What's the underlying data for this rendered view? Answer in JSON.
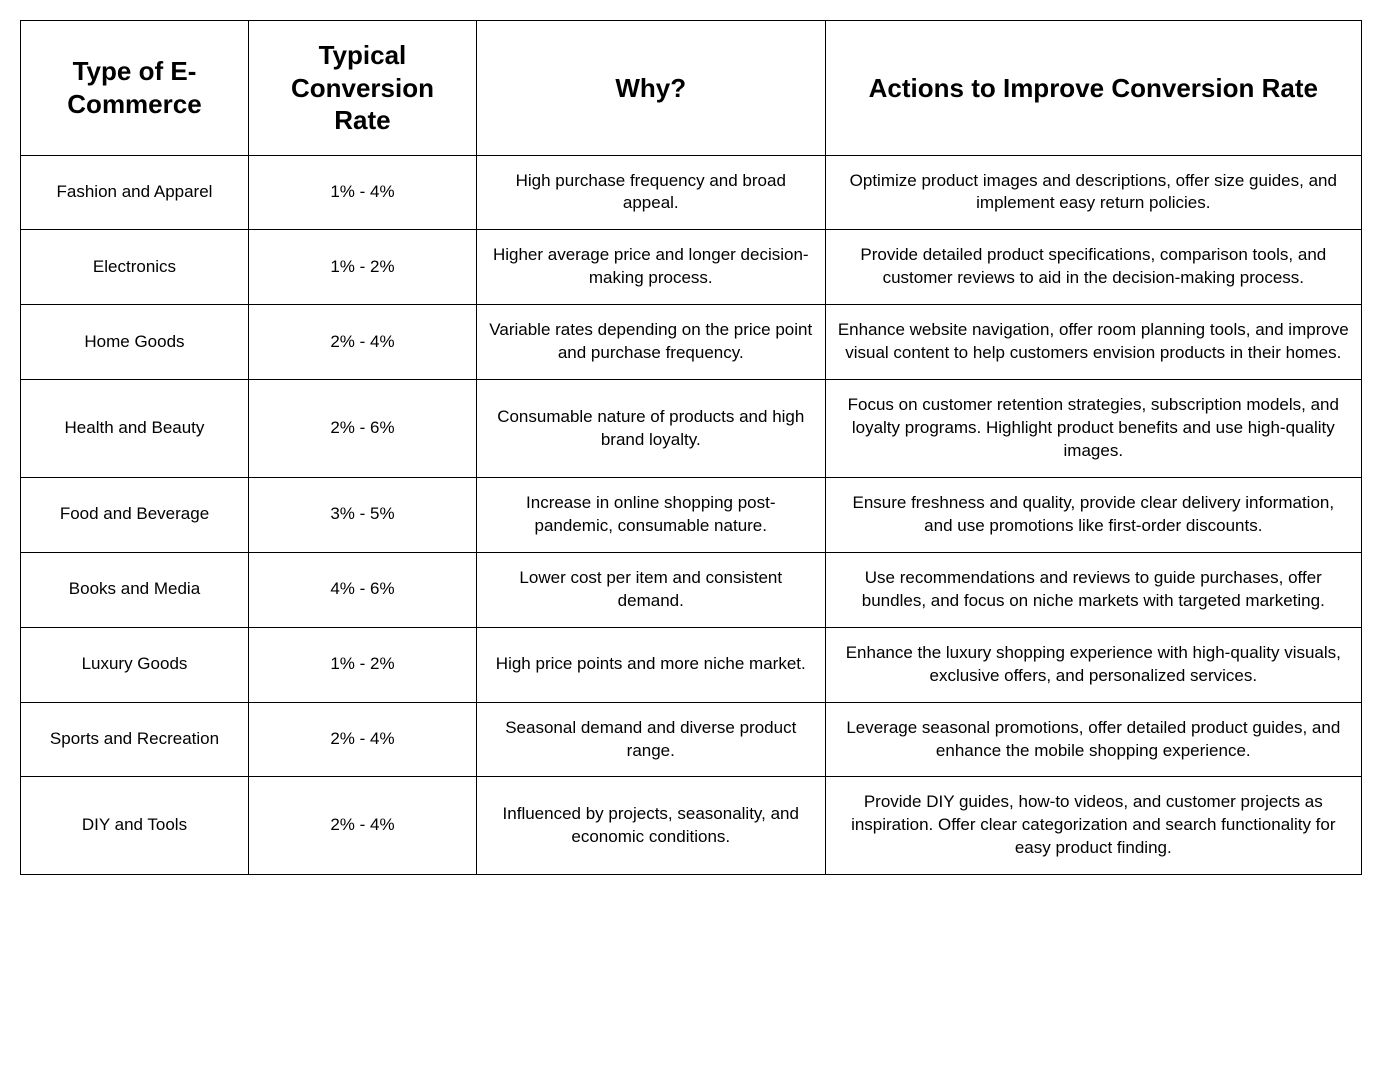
{
  "table": {
    "columns": [
      "Type of E-Commerce",
      "Typical Conversion Rate",
      "Why?",
      "Actions to Improve Conversion Rate"
    ],
    "rows": [
      {
        "type": "Fashion and Apparel",
        "rate": "1% - 4%",
        "why": "High purchase frequency and broad appeal.",
        "actions": "Optimize product images and descriptions, offer size guides, and implement easy return policies."
      },
      {
        "type": "Electronics",
        "rate": "1% - 2%",
        "why": "Higher average price and longer decision-making process.",
        "actions": "Provide detailed product specifications, comparison tools, and customer reviews to aid in the decision-making process."
      },
      {
        "type": "Home Goods",
        "rate": "2% - 4%",
        "why": "Variable rates depending on the price point and purchase frequency.",
        "actions": "Enhance website navigation, offer room planning tools, and improve visual content to help customers envision products in their homes."
      },
      {
        "type": "Health and Beauty",
        "rate": "2% - 6%",
        "why": "Consumable nature of products and high brand loyalty.",
        "actions": "Focus on customer retention strategies, subscription models, and loyalty programs. Highlight product benefits and use high-quality images."
      },
      {
        "type": "Food and Beverage",
        "rate": "3% - 5%",
        "why": "Increase in online shopping post-pandemic, consumable nature.",
        "actions": "Ensure freshness and quality, provide clear delivery information, and use promotions like first-order discounts."
      },
      {
        "type": "Books and Media",
        "rate": "4% - 6%",
        "why": "Lower cost per item and consistent demand.",
        "actions": "Use recommendations and reviews to guide purchases, offer bundles, and focus on niche markets with targeted marketing."
      },
      {
        "type": "Luxury Goods",
        "rate": "1% - 2%",
        "why": "High price points and more niche market.",
        "actions": "Enhance the luxury shopping experience with high-quality visuals, exclusive offers, and personalized services."
      },
      {
        "type": "Sports and Recreation",
        "rate": "2% - 4%",
        "why": "Seasonal demand and diverse product range.",
        "actions": "Leverage seasonal promotions, offer detailed product guides, and enhance the mobile shopping experience."
      },
      {
        "type": "DIY and Tools",
        "rate": "2% - 4%",
        "why": "Influenced by projects, seasonality, and economic conditions.",
        "actions": "Provide DIY guides, how-to videos, and customer projects as inspiration. Offer clear categorization and search functionality for easy product finding."
      }
    ]
  }
}
